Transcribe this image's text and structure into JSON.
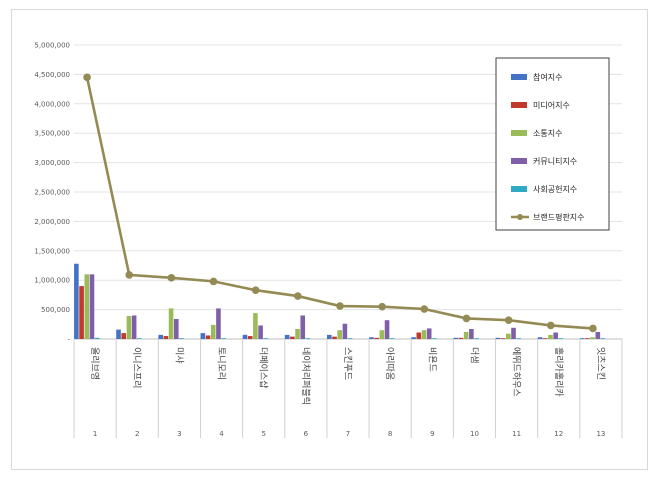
{
  "chart_data": {
    "type": "bar",
    "categories": [
      "올리브영",
      "이니스프리",
      "미샤",
      "토니모리",
      "더페이스샵",
      "네이처리퍼블릭",
      "스킨푸드",
      "아리따움",
      "비욘드",
      "더샘",
      "에뛰드하우스",
      "홀리카홀리카",
      "잇츠스킨"
    ],
    "ranks": [
      "1",
      "2",
      "3",
      "4",
      "5",
      "6",
      "7",
      "8",
      "9",
      "10",
      "11",
      "12",
      "13"
    ],
    "ylim": [
      0,
      5000000
    ],
    "yticks": [
      "-",
      "500,000",
      "1,000,000",
      "1,500,000",
      "2,000,000",
      "2,500,000",
      "3,000,000",
      "3,500,000",
      "4,000,000",
      "4,500,000",
      "5,000,000"
    ],
    "grid": true,
    "legend_position": "right",
    "series": [
      {
        "name": "참여지수",
        "type": "bar",
        "color": "#4472c4",
        "values": [
          1280000,
          160000,
          70000,
          100000,
          70000,
          70000,
          70000,
          30000,
          30000,
          20000,
          20000,
          30000,
          10000
        ]
      },
      {
        "name": "미디어지수",
        "type": "bar",
        "color": "#c0392b",
        "values": [
          900000,
          100000,
          50000,
          60000,
          50000,
          40000,
          40000,
          20000,
          110000,
          20000,
          10000,
          10000,
          10000
        ]
      },
      {
        "name": "소통지수",
        "type": "bar",
        "color": "#9bbb59",
        "values": [
          1100000,
          390000,
          520000,
          240000,
          440000,
          170000,
          150000,
          150000,
          150000,
          120000,
          90000,
          70000,
          30000
        ]
      },
      {
        "name": "커뮤니티지수",
        "type": "bar",
        "color": "#7f5fa8",
        "values": [
          1100000,
          400000,
          340000,
          520000,
          230000,
          400000,
          260000,
          320000,
          180000,
          170000,
          190000,
          110000,
          120000
        ]
      },
      {
        "name": "사회공헌지수",
        "type": "bar",
        "color": "#2eaac4",
        "values": [
          20000,
          5000,
          5000,
          5000,
          5000,
          5000,
          5000,
          5000,
          5000,
          5000,
          5000,
          5000,
          5000
        ]
      },
      {
        "name": "브랜드평판지수",
        "type": "line",
        "color": "#948a54",
        "values": [
          4450000,
          1090000,
          1040000,
          980000,
          830000,
          730000,
          560000,
          550000,
          510000,
          350000,
          320000,
          230000,
          180000
        ]
      }
    ]
  }
}
